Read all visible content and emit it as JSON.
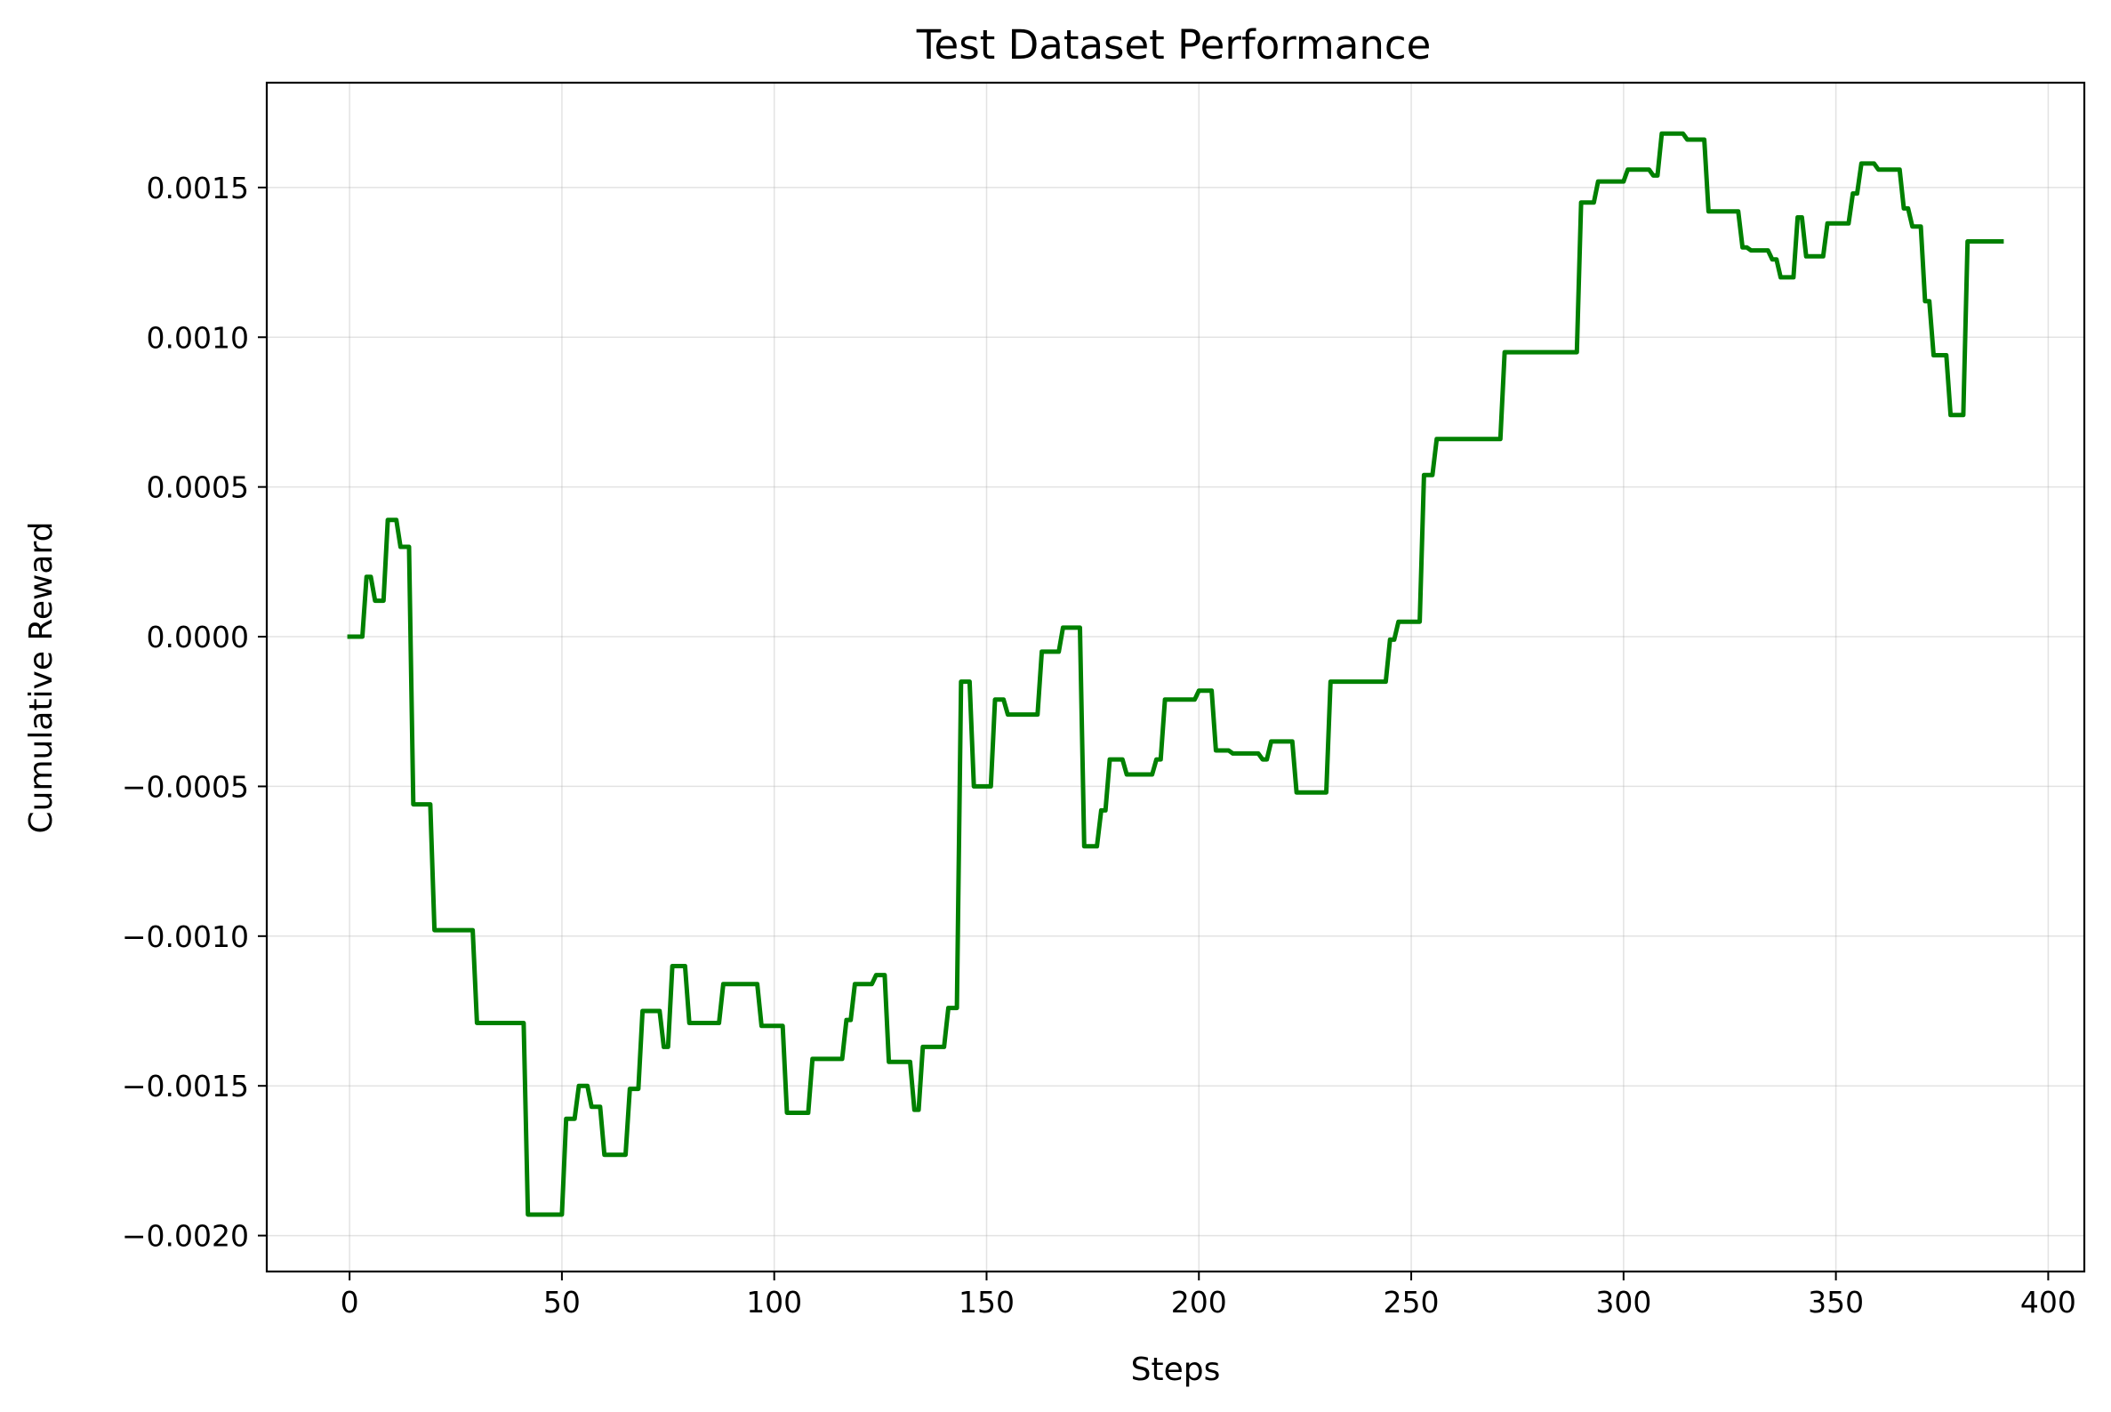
{
  "chart_data": {
    "type": "line",
    "title": "Test Dataset Performance",
    "xlabel": "Steps",
    "ylabel": "Cumulative Reward",
    "xlim": [
      -19.5,
      408.5
    ],
    "ylim": [
      -0.00212,
      0.00185
    ],
    "xticks": [
      0,
      50,
      100,
      150,
      200,
      250,
      300,
      350,
      400
    ],
    "xtick_labels": [
      "0",
      "50",
      "100",
      "150",
      "200",
      "250",
      "300",
      "350",
      "400"
    ],
    "yticks": [
      -0.002,
      -0.0015,
      -0.001,
      -0.0005,
      0.0,
      0.0005,
      0.001,
      0.0015
    ],
    "ytick_labels": [
      "−0.0020",
      "−0.0015",
      "−0.0010",
      "−0.0005",
      "0.0000",
      "0.0005",
      "0.0010",
      "0.0015"
    ],
    "grid": true,
    "series": [
      {
        "color": "#008000",
        "points": [
          [
            0,
            0.0
          ],
          [
            3,
            0.0
          ],
          [
            4,
            0.0002
          ],
          [
            5,
            0.0002
          ],
          [
            6,
            0.00012
          ],
          [
            8,
            0.00012
          ],
          [
            9,
            0.00039
          ],
          [
            11,
            0.00039
          ],
          [
            12,
            0.0003
          ],
          [
            14,
            0.0003
          ],
          [
            15,
            -0.00056
          ],
          [
            19,
            -0.00056
          ],
          [
            20,
            -0.00098
          ],
          [
            29,
            -0.00098
          ],
          [
            30,
            -0.00129
          ],
          [
            41,
            -0.00129
          ],
          [
            42,
            -0.00193
          ],
          [
            50,
            -0.00193
          ],
          [
            51,
            -0.00161
          ],
          [
            53,
            -0.00161
          ],
          [
            54,
            -0.0015
          ],
          [
            56,
            -0.0015
          ],
          [
            57,
            -0.00157
          ],
          [
            59,
            -0.00157
          ],
          [
            60,
            -0.00173
          ],
          [
            65,
            -0.00173
          ],
          [
            66,
            -0.00151
          ],
          [
            68,
            -0.00151
          ],
          [
            69,
            -0.00125
          ],
          [
            73,
            -0.00125
          ],
          [
            74,
            -0.00137
          ],
          [
            75,
            -0.00137
          ],
          [
            76,
            -0.0011
          ],
          [
            79,
            -0.0011
          ],
          [
            80,
            -0.00129
          ],
          [
            87,
            -0.00129
          ],
          [
            88,
            -0.00116
          ],
          [
            96,
            -0.00116
          ],
          [
            97,
            -0.0013
          ],
          [
            102,
            -0.0013
          ],
          [
            103,
            -0.00159
          ],
          [
            108,
            -0.00159
          ],
          [
            109,
            -0.00141
          ],
          [
            116,
            -0.00141
          ],
          [
            117,
            -0.00128
          ],
          [
            118,
            -0.00128
          ],
          [
            119,
            -0.00116
          ],
          [
            123,
            -0.00116
          ],
          [
            124,
            -0.00113
          ],
          [
            126,
            -0.00113
          ],
          [
            127,
            -0.00142
          ],
          [
            132,
            -0.00142
          ],
          [
            133,
            -0.00158
          ],
          [
            134,
            -0.00158
          ],
          [
            135,
            -0.00137
          ],
          [
            140,
            -0.00137
          ],
          [
            141,
            -0.00124
          ],
          [
            143,
            -0.00124
          ],
          [
            144,
            -0.00015
          ],
          [
            146,
            -0.00015
          ],
          [
            147,
            -0.0005
          ],
          [
            151,
            -0.0005
          ],
          [
            152,
            -0.00021
          ],
          [
            154,
            -0.00021
          ],
          [
            155,
            -0.00026
          ],
          [
            162,
            -0.00026
          ],
          [
            163,
            -5e-05
          ],
          [
            167,
            -5e-05
          ],
          [
            168,
            3e-05
          ],
          [
            172,
            3e-05
          ],
          [
            173,
            -0.0007
          ],
          [
            176,
            -0.0007
          ],
          [
            177,
            -0.00058
          ],
          [
            178,
            -0.00058
          ],
          [
            179,
            -0.00041
          ],
          [
            182,
            -0.00041
          ],
          [
            183,
            -0.00046
          ],
          [
            189,
            -0.00046
          ],
          [
            190,
            -0.00041
          ],
          [
            191,
            -0.00041
          ],
          [
            192,
            -0.00021
          ],
          [
            199,
            -0.00021
          ],
          [
            200,
            -0.00018
          ],
          [
            203,
            -0.00018
          ],
          [
            204,
            -0.00038
          ],
          [
            207,
            -0.00038
          ],
          [
            208,
            -0.00039
          ],
          [
            214,
            -0.00039
          ],
          [
            215,
            -0.00041
          ],
          [
            216,
            -0.00041
          ],
          [
            217,
            -0.00035
          ],
          [
            222,
            -0.00035
          ],
          [
            223,
            -0.00052
          ],
          [
            230,
            -0.00052
          ],
          [
            231,
            -0.00015
          ],
          [
            244,
            -0.00015
          ],
          [
            245,
            -1e-05
          ],
          [
            246,
            -1e-05
          ],
          [
            247,
            5e-05
          ],
          [
            252,
            5e-05
          ],
          [
            253,
            0.00054
          ],
          [
            255,
            0.00054
          ],
          [
            256,
            0.00066
          ],
          [
            271,
            0.00066
          ],
          [
            272,
            0.00095
          ],
          [
            289,
            0.00095
          ],
          [
            290,
            0.00145
          ],
          [
            293,
            0.00145
          ],
          [
            294,
            0.00152
          ],
          [
            300,
            0.00152
          ],
          [
            301,
            0.00156
          ],
          [
            306,
            0.00156
          ],
          [
            307,
            0.00154
          ],
          [
            308,
            0.00154
          ],
          [
            309,
            0.00168
          ],
          [
            314,
            0.00168
          ],
          [
            315,
            0.00166
          ],
          [
            319,
            0.00166
          ],
          [
            320,
            0.00142
          ],
          [
            327,
            0.00142
          ],
          [
            328,
            0.0013
          ],
          [
            329,
            0.0013
          ],
          [
            330,
            0.00129
          ],
          [
            334,
            0.00129
          ],
          [
            335,
            0.00126
          ],
          [
            336,
            0.00126
          ],
          [
            337,
            0.0012
          ],
          [
            340,
            0.0012
          ],
          [
            341,
            0.0014
          ],
          [
            342,
            0.0014
          ],
          [
            343,
            0.00127
          ],
          [
            347,
            0.00127
          ],
          [
            348,
            0.00138
          ],
          [
            353,
            0.00138
          ],
          [
            354,
            0.00148
          ],
          [
            355,
            0.00148
          ],
          [
            356,
            0.00158
          ],
          [
            359,
            0.00158
          ],
          [
            360,
            0.00156
          ],
          [
            365,
            0.00156
          ],
          [
            366,
            0.00143
          ],
          [
            367,
            0.00143
          ],
          [
            368,
            0.00137
          ],
          [
            370,
            0.00137
          ],
          [
            371,
            0.00112
          ],
          [
            372,
            0.00112
          ],
          [
            373,
            0.00094
          ],
          [
            376,
            0.00094
          ],
          [
            377,
            0.00074
          ],
          [
            380,
            0.00074
          ],
          [
            381,
            0.00132
          ],
          [
            389,
            0.00132
          ]
        ]
      }
    ]
  }
}
